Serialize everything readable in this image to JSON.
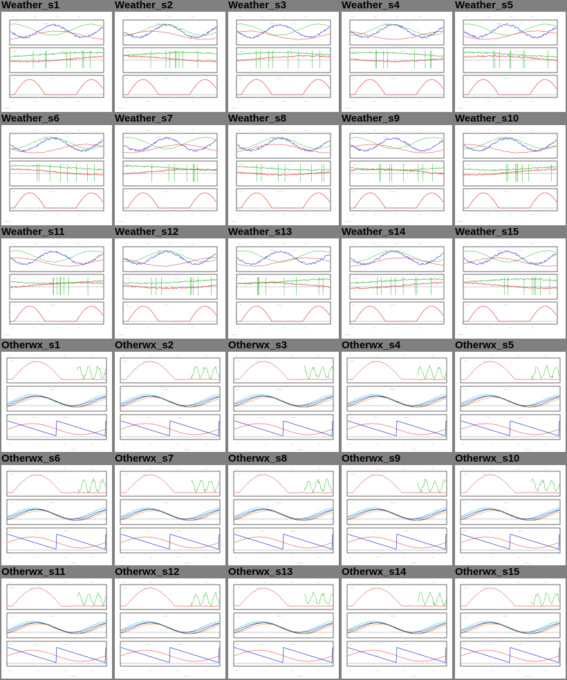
{
  "page": {
    "background": "#808080"
  },
  "colors": {
    "red": "#e02020",
    "green": "#20b020",
    "blue": "#2030d0",
    "cyan": "#20c8e0",
    "magenta": "#e020e0",
    "orange": "#e08020",
    "black": "#000000"
  },
  "rows": [
    {
      "kind": "weather",
      "titles": [
        "Weather_s1",
        "Weather_s2",
        "Weather_s3",
        "Weather_s4",
        "Weather_s5"
      ]
    },
    {
      "kind": "weather",
      "titles": [
        "Weather_s6",
        "Weather_s7",
        "Weather_s8",
        "Weather_s9",
        "Weather_s10"
      ]
    },
    {
      "kind": "weather",
      "titles": [
        "Weather_s11",
        "Weather_s12",
        "Weather_s13",
        "Weather_s14",
        "Weather_s15"
      ]
    },
    {
      "kind": "otherwx",
      "titles": [
        "Otherwx_s1",
        "Otherwx_s2",
        "Otherwx_s3",
        "Otherwx_s4",
        "Otherwx_s5"
      ]
    },
    {
      "kind": "otherwx",
      "titles": [
        "Otherwx_s6",
        "Otherwx_s7",
        "Otherwx_s8",
        "Otherwx_s9",
        "Otherwx_s10"
      ]
    },
    {
      "kind": "otherwx",
      "titles": [
        "Otherwx_s11",
        "Otherwx_s12",
        "Otherwx_s13",
        "Otherwx_s14",
        "Otherwx_s15"
      ]
    }
  ]
}
